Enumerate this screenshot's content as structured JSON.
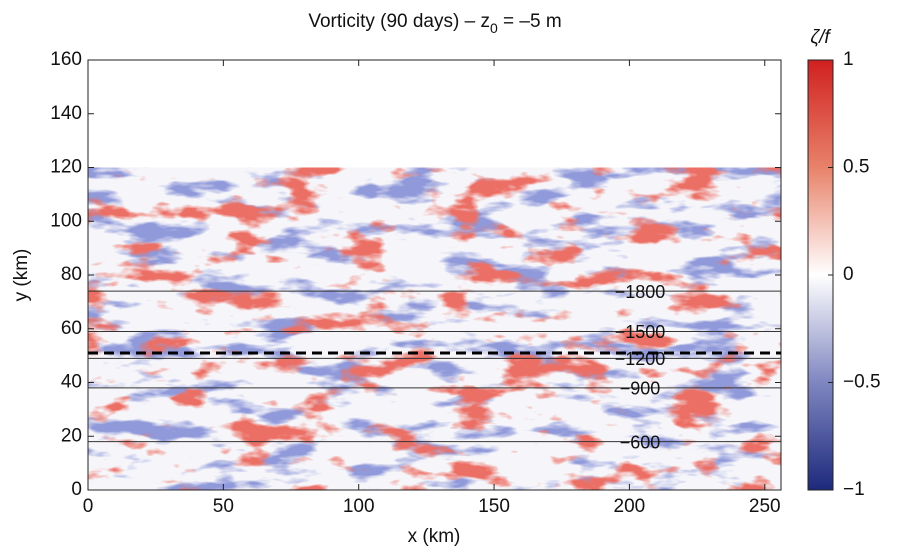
{
  "chart_data": {
    "type": "heatmap",
    "title": {
      "main": "Vorticity (90 days) – z",
      "subscript": "0",
      "tail": " = –5 m"
    },
    "x_label": "x (km)",
    "y_label": "y (km)",
    "xlim": [
      0,
      256
    ],
    "ylim": [
      0,
      160
    ],
    "xticks": [
      0,
      50,
      100,
      150,
      200,
      250
    ],
    "yticks": [
      0,
      20,
      40,
      60,
      80,
      100,
      120,
      140,
      160
    ],
    "colorbar": {
      "label": "ζ/f",
      "clim": [
        -1,
        1
      ],
      "ticks": [
        {
          "value": -1,
          "label": "−1"
        },
        {
          "value": -0.5,
          "label": "−0.5"
        },
        0,
        0.5,
        1
      ],
      "colormap": [
        {
          "value": -1,
          "color": "#1d2a7c"
        },
        {
          "value": -0.5,
          "color": "#7f86c0"
        },
        {
          "value": 0,
          "color": "#ffffff"
        },
        {
          "value": 0.5,
          "color": "#e8826a"
        },
        {
          "value": 1,
          "color": "#d02020"
        }
      ]
    },
    "contours": [
      {
        "y": 74,
        "level": {
          "value": -1800,
          "label": "−1800"
        }
      },
      {
        "y": 59,
        "level": {
          "value": -1500,
          "label": "−1500"
        }
      },
      {
        "y": 49,
        "level": {
          "value": -1200,
          "label": "−1200"
        }
      },
      {
        "y": 38,
        "level": {
          "value": -900,
          "label": "−900"
        }
      },
      {
        "y": 18,
        "level": {
          "value": -600,
          "label": "−600"
        }
      }
    ],
    "dashed_line_y": 51,
    "field_top_y": 120
  }
}
